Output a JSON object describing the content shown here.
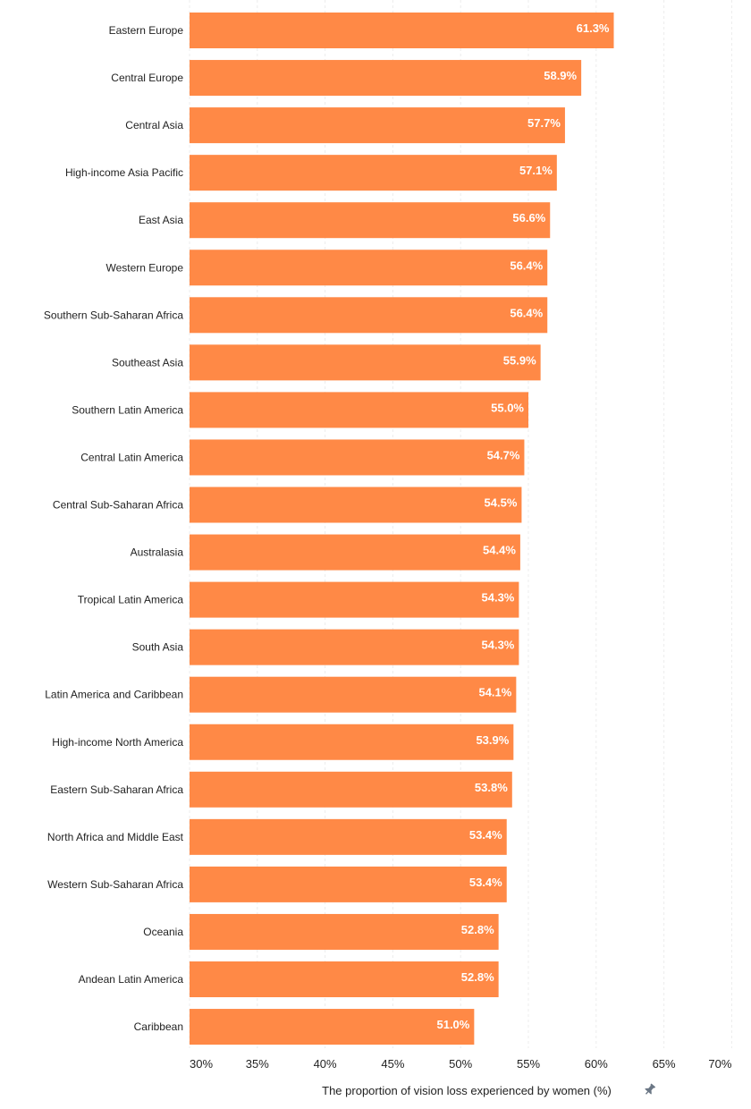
{
  "chart_data": {
    "type": "bar",
    "orientation": "horizontal",
    "categories": [
      "Eastern Europe",
      "Central Europe",
      "Central Asia",
      "High-income Asia Pacific",
      "East Asia",
      "Western Europe",
      "Southern Sub-Saharan Africa",
      "Southeast Asia",
      "Southern Latin America",
      "Central Latin America",
      "Central Sub-Saharan Africa",
      "Australasia",
      "Tropical Latin America",
      "South Asia",
      "Latin America and Caribbean",
      "High-income North America",
      "Eastern Sub-Saharan Africa",
      "North Africa and Middle East",
      "Western Sub-Saharan Africa",
      "Oceania",
      "Andean Latin America",
      "Caribbean"
    ],
    "values": [
      61.3,
      58.9,
      57.7,
      57.1,
      56.6,
      56.4,
      56.4,
      55.9,
      55.0,
      54.7,
      54.5,
      54.4,
      54.3,
      54.3,
      54.1,
      53.9,
      53.8,
      53.4,
      53.4,
      52.8,
      52.8,
      51.0
    ],
    "value_labels": [
      "61.3%",
      "58.9%",
      "57.7%",
      "57.1%",
      "56.6%",
      "56.4%",
      "56.4%",
      "55.9%",
      "55.0%",
      "54.7%",
      "54.5%",
      "54.4%",
      "54.3%",
      "54.3%",
      "54.1%",
      "53.9%",
      "53.8%",
      "53.4%",
      "53.4%",
      "52.8%",
      "52.8%",
      "51.0%"
    ],
    "xticks": [
      30,
      35,
      40,
      45,
      50,
      55,
      60,
      65,
      70
    ],
    "xtick_labels": [
      "30%",
      "35%",
      "40%",
      "45%",
      "50%",
      "55%",
      "60%",
      "65%",
      "70%"
    ],
    "xlim": [
      30,
      70
    ],
    "xlabel": "The proportion of vision loss experienced by women (%)",
    "grid": true,
    "bar_color": "#ff8946",
    "value_label_color": "#ffffff",
    "text_color": "#222222",
    "grid_color": "#ececec",
    "xlabel_icon": "pin-icon",
    "xlabel_icon_color": "#6b7785"
  }
}
